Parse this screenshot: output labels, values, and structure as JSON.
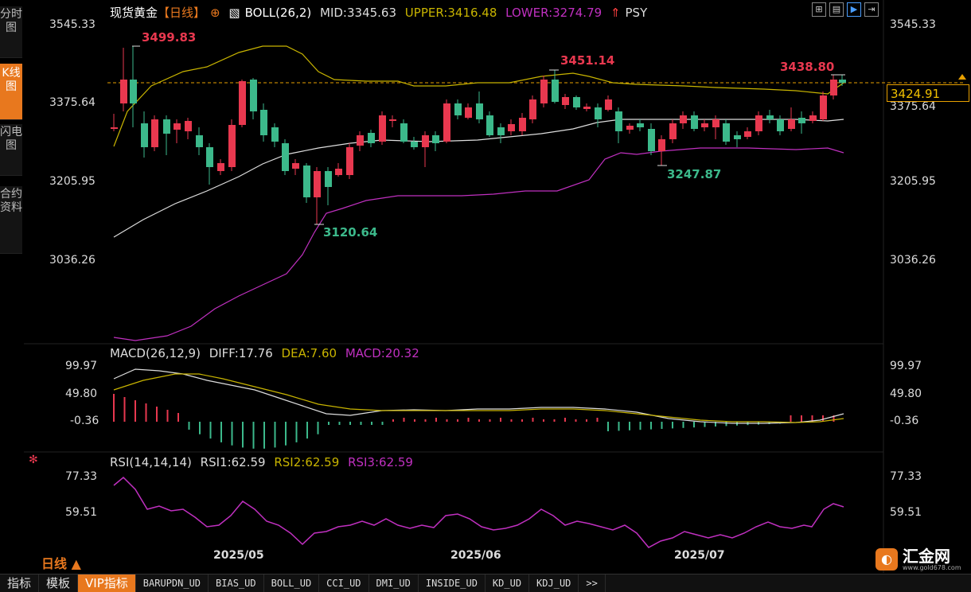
{
  "sidebar": [
    {
      "label": "分时图",
      "active": false
    },
    {
      "label": "K线图",
      "active": true
    },
    {
      "label": "闪电图",
      "active": false
    },
    {
      "label": "合约资料",
      "active": false
    }
  ],
  "header": {
    "symbol": "现货黄金",
    "period_tag": "【日线】",
    "boll_label": "BOLL(26,2)",
    "mid": "MID:3345.63",
    "upper": "UPPER:3416.48",
    "lower": "LOWER:3274.79",
    "psy": "PSY"
  },
  "toolbar_icons": [
    "grid-icon",
    "chart-icon",
    "play-icon",
    "exit-icon"
  ],
  "main_axis": {
    "ticks": [
      "3545.33",
      "3375.64",
      "3205.95",
      "3036.26"
    ],
    "right_ticks": [
      "3545.33",
      "3375.64",
      "3205.95",
      "3036.26"
    ],
    "current_price": "3424.91"
  },
  "annotations": {
    "high1": "3499.83",
    "high2": "3451.14",
    "high3": "3438.80",
    "low1": "3120.64",
    "low2": "3247.87"
  },
  "macd": {
    "label": "MACD(26,12,9)",
    "diff": "DIFF:17.76",
    "dea": "DEA:7.60",
    "macd": "MACD:20.32",
    "ticks": [
      "99.97",
      "49.80",
      "-0.36"
    ]
  },
  "rsi": {
    "label": "RSI(14,14,14)",
    "rsi1": "RSI1:62.59",
    "rsi2": "RSI2:62.59",
    "rsi3": "RSI3:62.59",
    "ticks": [
      "77.33",
      "59.51"
    ]
  },
  "x_axis": {
    "ticks": [
      "2025/05",
      "2025/06",
      "2025/07"
    ]
  },
  "period_button": "日线 ▲",
  "tabs": [
    "指标",
    "模板",
    "VIP指标",
    "BARUPDN_UD",
    "BIAS_UD",
    "BOLL_UD",
    "CCI_UD",
    "DMI_UD",
    "INSIDE_UD",
    "KD_UD",
    "KDJ_UD",
    ">>"
  ],
  "logo": {
    "name": "汇金网",
    "url_text": "www.gold678.com"
  },
  "colors": {
    "up": "#e8384f",
    "down": "#3cb98b",
    "upper": "#c8b400",
    "mid": "#dddddd",
    "lower": "#c030c0",
    "accent": "#e8781e"
  }
}
